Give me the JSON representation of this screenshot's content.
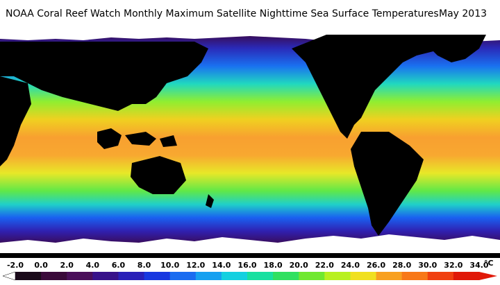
{
  "header": {
    "title": "NOAA Coral Reef Watch Monthly Maximum Satellite Nighttime Sea Surface Temperatures",
    "date": "May 2013"
  },
  "colorbar": {
    "unit": "°C",
    "ticks": [
      "-2.0",
      "0.0",
      "2.0",
      "4.0",
      "6.0",
      "8.0",
      "10.0",
      "12.0",
      "14.0",
      "16.0",
      "18.0",
      "20.0",
      "22.0",
      "24.0",
      "26.0",
      "28.0",
      "30.0",
      "32.0",
      "34.0"
    ],
    "colors": [
      "#ffffff",
      "#1a0a1a",
      "#3a0a3a",
      "#4a0f5a",
      "#38128a",
      "#2a20b8",
      "#1838e0",
      "#1a6cf0",
      "#16a0f0",
      "#14d0e0",
      "#18e0a0",
      "#30e060",
      "#70e830",
      "#b8f020",
      "#f0e020",
      "#f8a020",
      "#f87818",
      "#f04010",
      "#e01808"
    ]
  },
  "map_colors": {
    "land": "#000000",
    "ice": "#ffffff",
    "polar": "#3a0a52",
    "subpolar": "#2a2ab8",
    "cool": "#1a90f0",
    "temperate": "#20d8c0",
    "warm": "#78e838",
    "subtropical": "#d8f020",
    "tropical": "#f8b030",
    "hot": "#f89040"
  }
}
